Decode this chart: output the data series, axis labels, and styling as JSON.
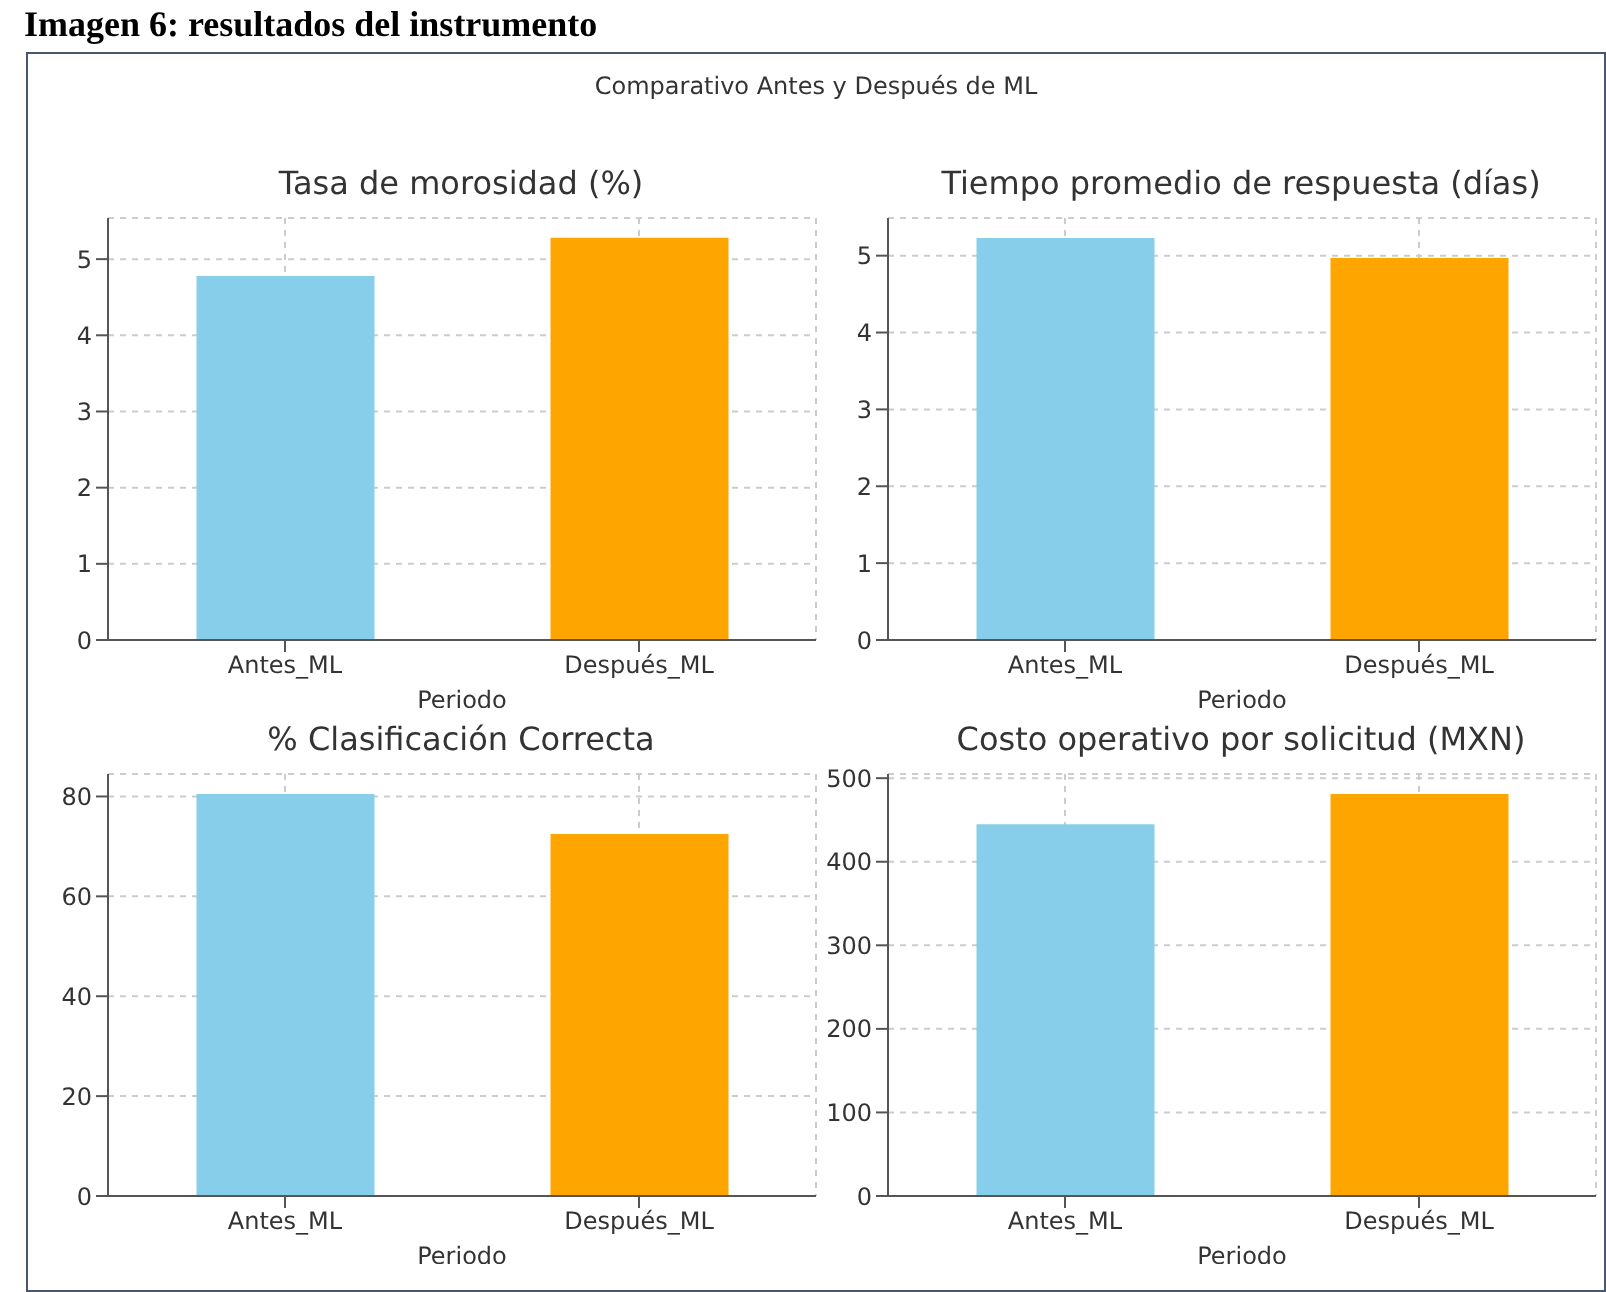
{
  "chart_data": [
    {
      "type": "bar",
      "title": "Tasa de morosidad (%)",
      "xlabel": "Periodo",
      "annotations": [
        "Imagen 6: resultados del instrumento",
        "Comparativo Antes y Después de ML"
      ],
      "categories": [
        "Antes_ML",
        "Después_ML"
      ],
      "values": [
        4.78,
        5.28
      ],
      "colors": [
        "#87ceeb",
        "#ffa500"
      ],
      "ylim": [
        0,
        5.54
      ],
      "yticks": [
        0,
        1,
        2,
        3,
        4,
        5
      ],
      "grid": true
    },
    {
      "type": "bar",
      "title": "Tiempo promedio de respuesta (días)",
      "xlabel": "Periodo",
      "categories": [
        "Antes_ML",
        "Después_ML"
      ],
      "values": [
        5.23,
        4.97
      ],
      "colors": [
        "#87ceeb",
        "#ffa500"
      ],
      "ylim": [
        0,
        5.49
      ],
      "yticks": [
        0,
        1,
        2,
        3,
        4,
        5
      ],
      "grid": true
    },
    {
      "type": "bar",
      "title": "% Clasificación Correcta",
      "xlabel": "Periodo",
      "categories": [
        "Antes_ML",
        "Después_ML"
      ],
      "values": [
        80.5,
        72.5
      ],
      "colors": [
        "#87ceeb",
        "#ffa500"
      ],
      "ylim": [
        0,
        84.5
      ],
      "yticks": [
        0,
        20,
        40,
        60,
        80
      ],
      "grid": true
    },
    {
      "type": "bar",
      "title": "Costo operativo por solicitud (MXN)",
      "xlabel": "Periodo",
      "categories": [
        "Antes_ML",
        "Después_ML"
      ],
      "values": [
        445,
        481
      ],
      "colors": [
        "#87ceeb",
        "#ffa500"
      ],
      "ylim": [
        0,
        505
      ],
      "yticks": [
        0,
        100,
        200,
        300,
        400,
        500
      ],
      "grid": true
    }
  ]
}
